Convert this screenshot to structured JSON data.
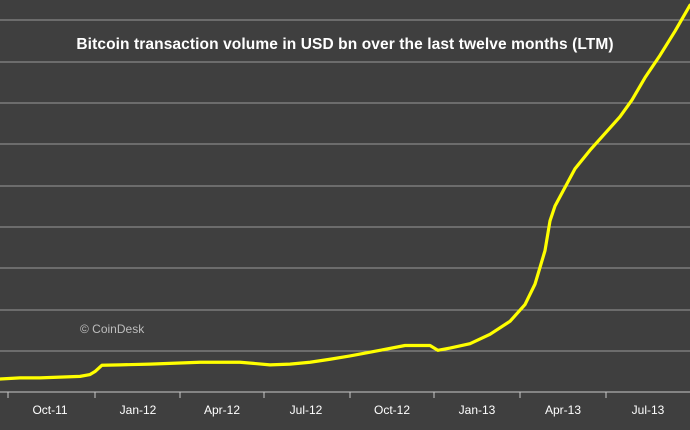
{
  "chart_data": {
    "type": "line",
    "title": "Bitcoin transaction volume in USD bn over the last twelve months (LTM)",
    "watermark": "© CoinDesk",
    "xlabel": "",
    "ylabel": "",
    "x_ticks": [
      "Oct-11",
      "Jan-12",
      "Apr-12",
      "Jul-12",
      "Oct-12",
      "Jan-13",
      "Apr-13",
      "Jul-13"
    ],
    "grid": true,
    "legend": "none",
    "ylim": [
      0,
      10
    ],
    "series": [
      {
        "color": "#ffff00",
        "x": [
          0,
          20,
          40,
          60,
          80,
          90,
          95,
          102,
          120,
          150,
          200,
          240,
          270,
          290,
          310,
          330,
          350,
          380,
          405,
          430,
          438,
          450,
          470,
          490,
          510,
          525,
          535,
          545,
          550,
          555,
          565,
          575,
          590,
          605,
          620,
          632,
          645,
          660,
          675,
          690
        ],
        "y": [
          0.35,
          0.38,
          0.38,
          0.4,
          0.42,
          0.47,
          0.55,
          0.72,
          0.73,
          0.75,
          0.8,
          0.8,
          0.73,
          0.75,
          0.8,
          0.88,
          0.97,
          1.12,
          1.25,
          1.25,
          1.12,
          1.18,
          1.3,
          1.55,
          1.9,
          2.35,
          2.9,
          3.8,
          4.6,
          5.0,
          5.5,
          6.0,
          6.5,
          6.95,
          7.4,
          7.85,
          8.45,
          9.05,
          9.7,
          10.4
        ]
      }
    ]
  },
  "colors": {
    "background": "#3f3f3f",
    "grid": "#9a9a9a",
    "line": "#ffff00",
    "text": "#ffffff",
    "watermark": "#bdbdbd"
  }
}
